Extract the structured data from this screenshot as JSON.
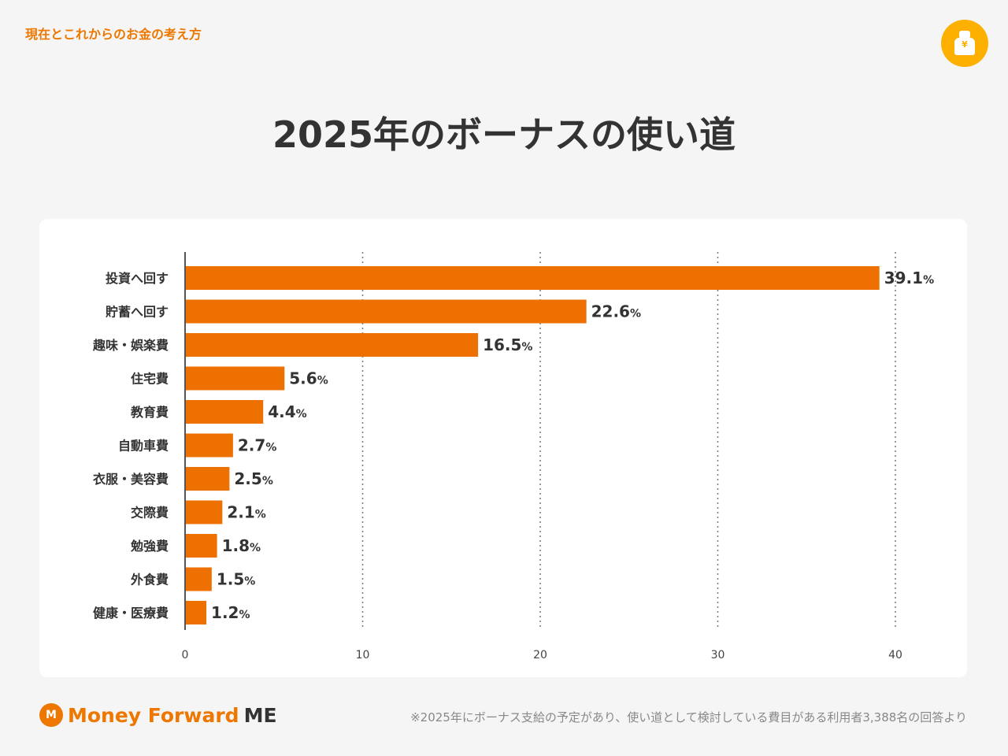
{
  "header": {
    "series_title": "現在とこれからのお金の考え方",
    "icon": "money-bag-yen-icon",
    "yen": "¥"
  },
  "chart_data": {
    "type": "bar",
    "orientation": "horizontal",
    "title": "2025年のボーナスの使い道",
    "categories": [
      "投資へ回す",
      "貯蓄へ回す",
      "趣味・娯楽費",
      "住宅費",
      "教育費",
      "自動車費",
      "衣服・美容費",
      "交際費",
      "勉強費",
      "外食費",
      "健康・医療費"
    ],
    "values": [
      39.1,
      22.6,
      16.5,
      5.6,
      4.4,
      2.7,
      2.5,
      2.1,
      1.8,
      1.5,
      1.2
    ],
    "value_labels": [
      "39.1",
      "22.6",
      "16.5",
      "5.6",
      "4.4",
      "2.7",
      "2.5",
      "2.1",
      "1.8",
      "1.5",
      "1.2"
    ],
    "unit": "%",
    "xlim": [
      0,
      40
    ],
    "xticks": [
      "0",
      "10",
      "20",
      "30",
      "40"
    ],
    "grid": "dotted vertical",
    "color": "#ee7000"
  },
  "footer": {
    "logo_main": "Money Forward",
    "logo_suffix": "ME",
    "note": "※2025年にボーナス支給の予定があり、使い道として検討している費目がある利用者3,388名の回答より"
  }
}
